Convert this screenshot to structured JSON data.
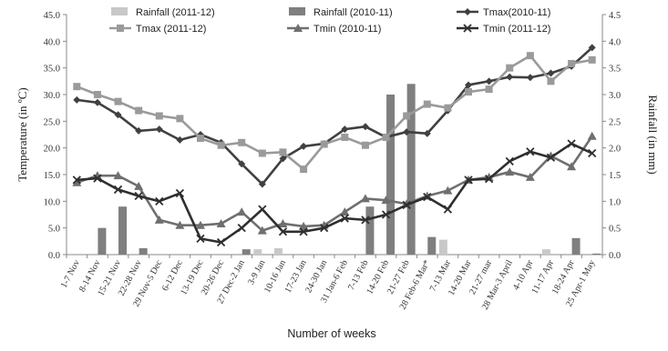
{
  "chart_data": {
    "type": "line",
    "title": "",
    "xlabel": "Number of weeks",
    "ylabel_left": "Temperature (in ºC)",
    "ylabel_right": "Rainfall (in mm)",
    "ylim_left": [
      0,
      45
    ],
    "ylim_right": [
      0,
      4.5
    ],
    "yticks_left": [
      "0.0",
      "5.0",
      "10.0",
      "15.0",
      "20.0",
      "25.0",
      "30.0",
      "35.0",
      "40.0",
      "45.0"
    ],
    "yticks_right": [
      "0.0",
      "0.5",
      "1.0",
      "1.5",
      "2.0",
      "2.5",
      "3.0",
      "3.5",
      "4.0",
      "4.5"
    ],
    "categories": [
      "1-7 Nov",
      "8-14 Nov",
      "15-21 Nov",
      "22-28 Nov",
      "29 Nov-5 Dec",
      "6-12 Dec",
      "13-19 Dec",
      "20-26 Dec",
      "27 Dec-2 Jan",
      "3-9 Jan",
      "10-16 Jan",
      "17-23 Jan",
      "24-30 Jan",
      "31 Jan-6 Feb",
      "7-13 Feb",
      "14-20 Feb",
      "21-27 Feb",
      "28 Feb-6 Mar*",
      "7-13 Mar",
      "14-20 Mar",
      "21-27 mar",
      "28 Mar-3 April",
      "4-10 Apr",
      "11-17 Apr",
      "18-24 Apr",
      "25 Apr-1 May"
    ],
    "legend_position": "top",
    "grid": false,
    "series": [
      {
        "name": "Rainfall (2011-12)",
        "kind": "bar",
        "axis": "right",
        "color": "#c8c8c8",
        "values": [
          0,
          0,
          0,
          0,
          0,
          0,
          0,
          0,
          0,
          0.1,
          0.12,
          0,
          0,
          0,
          0,
          0,
          0,
          0,
          0.28,
          0,
          0,
          0,
          0,
          0.1,
          0,
          0
        ]
      },
      {
        "name": "Rainfall (2010-11)",
        "kind": "bar",
        "axis": "right",
        "color": "#7f7f7f",
        "values": [
          0,
          0.5,
          0.9,
          0.12,
          0,
          0,
          0,
          0,
          0.1,
          0,
          0,
          0,
          0,
          0,
          0.9,
          3.0,
          3.2,
          0.33,
          0,
          0,
          0,
          0,
          0,
          0,
          0.31,
          0.02
        ]
      },
      {
        "name": "Tmax(2010-11)",
        "kind": "line",
        "axis": "left",
        "color": "#404040",
        "marker": "diamond",
        "values": [
          29.0,
          28.5,
          26.2,
          23.2,
          23.5,
          21.5,
          22.5,
          21.0,
          17.0,
          13.2,
          18.0,
          20.3,
          20.8,
          23.5,
          24.0,
          22.0,
          23.0,
          22.7,
          27.0,
          31.8,
          32.5,
          33.3,
          33.2,
          34.0,
          35.3,
          38.8
        ]
      },
      {
        "name": "Tmax (2011-12)",
        "kind": "line",
        "axis": "left",
        "color": "#9a9a9a",
        "marker": "square",
        "values": [
          31.5,
          30.0,
          28.7,
          27.0,
          26.0,
          25.5,
          21.8,
          20.5,
          21.0,
          19.0,
          19.2,
          16.0,
          20.7,
          22.0,
          20.5,
          22.0,
          26.0,
          28.2,
          27.5,
          30.5,
          31.0,
          35.0,
          37.3,
          32.5,
          35.8,
          36.5
        ]
      },
      {
        "name": "Tmin (2010-11)",
        "kind": "line",
        "axis": "left",
        "color": "#6f6f6f",
        "marker": "triangle",
        "values": [
          13.5,
          14.8,
          14.8,
          12.8,
          6.5,
          5.5,
          5.5,
          5.8,
          8.0,
          4.5,
          5.8,
          5.3,
          5.5,
          8.0,
          10.5,
          10.2,
          9.5,
          11.0,
          12.0,
          14.0,
          14.5,
          15.5,
          14.5,
          18.5,
          16.5,
          22.2
        ]
      },
      {
        "name": "Tmin (2011-12)",
        "kind": "line",
        "axis": "left",
        "color": "#2f2f2f",
        "marker": "x",
        "values": [
          14.0,
          14.3,
          12.2,
          11.0,
          10.0,
          11.5,
          3.0,
          2.3,
          5.0,
          8.5,
          4.3,
          4.3,
          5.0,
          6.8,
          6.5,
          7.5,
          9.3,
          10.8,
          8.5,
          14.0,
          14.2,
          17.5,
          19.3,
          18.2,
          20.8,
          19.0
        ]
      }
    ]
  }
}
